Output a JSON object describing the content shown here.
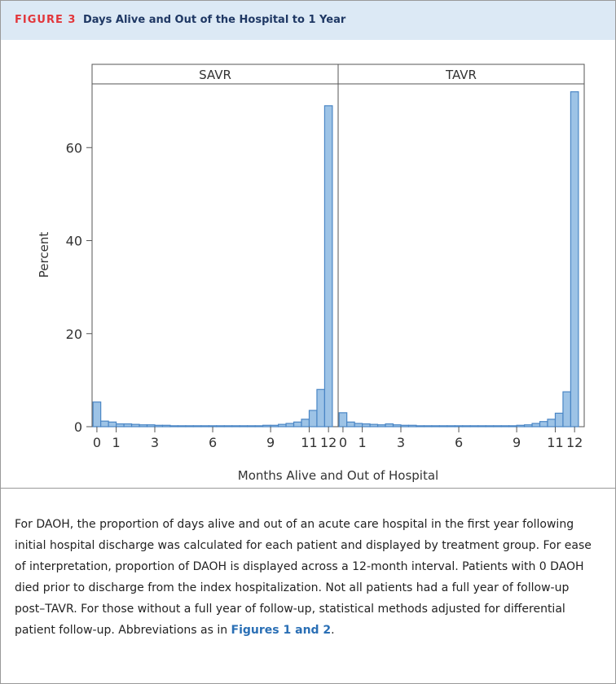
{
  "figure_label": "FIGURE 3",
  "figure_title": "Days Alive and Out of the Hospital to 1 Year",
  "caption": {
    "text": "For DAOH, the proportion of days alive and out of an acute care hospital in the first year following initial hospital discharge was calculated for each patient and displayed by treatment group. For ease of interpretation, proportion of DAOH is displayed across a 12-month interval. Patients with 0 DAOH died prior to discharge from the index hospitalization. Not all patients had a full year of follow-up post–TAVR. For those without a full year of follow-up, statistical methods adjusted for differential patient follow-up. Abbreviations as in",
    "link": "Figures 1 and 2",
    "end": "."
  },
  "chart_data": {
    "type": "histogram",
    "xlabel": "Months Alive and Out of Hospital",
    "ylabel": "Percent",
    "color": "#9dc3e6",
    "edge_color": "#4a86c5",
    "bins": [
      -0.2,
      0.2,
      0.6,
      1.0,
      1.4,
      1.8,
      2.2,
      2.6,
      3.0,
      3.4,
      3.8,
      4.2,
      4.6,
      5.0,
      5.4,
      5.8,
      6.2,
      6.6,
      7.0,
      7.4,
      7.8,
      8.2,
      8.6,
      9.0,
      9.4,
      9.8,
      10.2,
      10.6,
      11.0,
      11.4,
      11.8,
      12.2
    ],
    "panels": [
      {
        "name": "SAVR",
        "values": [
          5.3,
          1.2,
          1.0,
          0.6,
          0.6,
          0.5,
          0.4,
          0.4,
          0.3,
          0.3,
          0.2,
          0.2,
          0.2,
          0.2,
          0.2,
          0.2,
          0.2,
          0.2,
          0.2,
          0.2,
          0.2,
          0.2,
          0.3,
          0.3,
          0.5,
          0.7,
          1.0,
          1.6,
          3.5,
          8.0,
          69.0
        ]
      },
      {
        "name": "TAVR",
        "values": [
          3.0,
          1.0,
          0.7,
          0.6,
          0.5,
          0.4,
          0.6,
          0.4,
          0.3,
          0.3,
          0.2,
          0.2,
          0.2,
          0.2,
          0.2,
          0.2,
          0.2,
          0.2,
          0.2,
          0.2,
          0.2,
          0.2,
          0.2,
          0.3,
          0.4,
          0.7,
          1.1,
          1.6,
          2.9,
          7.5,
          72.0
        ]
      }
    ],
    "xlim": [
      -0.25,
      12.5
    ],
    "xticks": [
      0,
      1,
      3,
      6,
      9,
      11,
      12
    ],
    "ylim": [
      0,
      73.7
    ],
    "yticks": [
      0,
      20,
      40,
      60
    ]
  }
}
